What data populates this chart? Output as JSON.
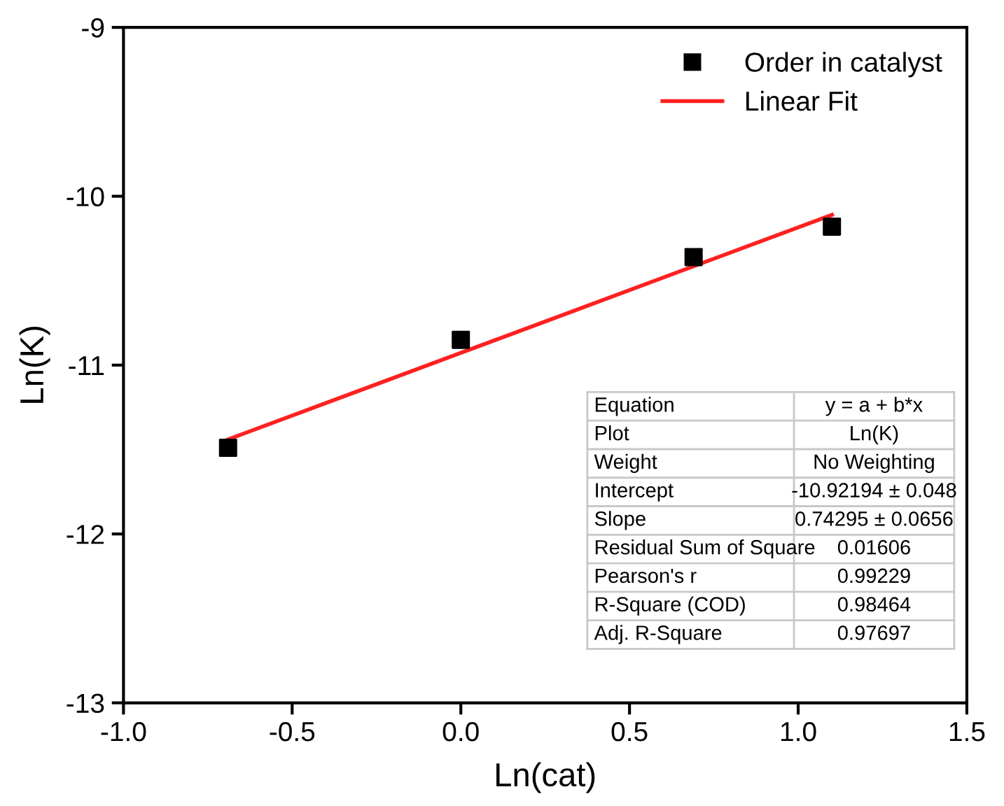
{
  "chart_data": {
    "type": "scatter",
    "xlabel": "Ln(cat)",
    "ylabel": "Ln(K)",
    "xlim": [
      -1.0,
      1.5
    ],
    "xticks": [
      {
        "value": -1.0,
        "label": "-1.0"
      },
      {
        "value": -0.5,
        "label": "-0.5"
      },
      {
        "value": 0.0,
        "label": "0.0"
      },
      {
        "value": 0.5,
        "label": "0.5"
      },
      {
        "value": 1.0,
        "label": "1.0"
      },
      {
        "value": 1.5,
        "label": "1.5"
      }
    ],
    "ylim": [
      -13,
      -9
    ],
    "yticks": [
      {
        "value": -13,
        "label": "-13"
      },
      {
        "value": -12,
        "label": "-12"
      },
      {
        "value": -11,
        "label": "-11"
      },
      {
        "value": -10,
        "label": "-10"
      },
      {
        "value": -9,
        "label": "-9"
      }
    ],
    "series": [
      {
        "name": "Order in catalyst",
        "marker": "square",
        "color": "#000000",
        "x": [
          -0.69,
          0.0,
          0.69,
          1.1
        ],
        "values": [
          -11.49,
          -10.85,
          -10.36,
          -10.18
        ]
      },
      {
        "name": "Linear Fit",
        "type": "line",
        "line_style": "solid",
        "color": "#ff2020",
        "x": [
          -0.69,
          1.1
        ],
        "values": [
          -11.44,
          -10.11
        ]
      }
    ],
    "legend": "top right",
    "grid": false,
    "annotations": [
      "Equation",
      "y = a + b*x",
      "Plot",
      "Ln(K)",
      "Weight",
      "No Weighting",
      "Intercept",
      "-10.92194 ± 0.048",
      "Slope",
      "0.74295 ± 0.0656",
      "Residual Sum of Square",
      "0.01606",
      "Pearson's r",
      "0.99229",
      "R-Square (COD)",
      "0.98464",
      "Adj. R-Square",
      "0.97697"
    ]
  }
}
